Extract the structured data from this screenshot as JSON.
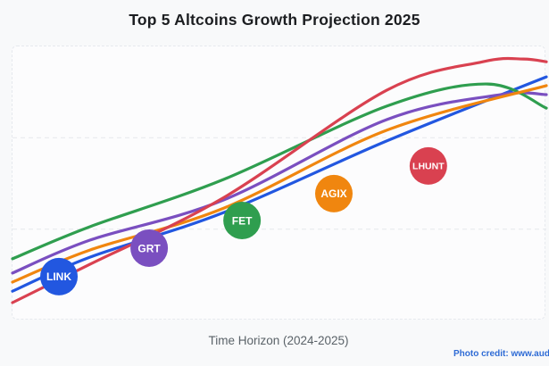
{
  "title": "Top 5 Altcoins Growth Projection 2025",
  "photo_credit": "Photo credit: www.aud",
  "theme": {
    "page_bg": "#f8f9fa",
    "panel_bg": "#fcfcfd",
    "panel_border": "#e6e9ee",
    "grid_color": "#e7eaee",
    "title_color": "#1c1e21",
    "axis_label_color": "#5a6268",
    "credit_color": "#2e6bd5",
    "bubble_text_color": "#ffffff"
  },
  "chart_data": {
    "type": "line",
    "title": "Top 5 Altcoins Growth Projection 2025",
    "xlabel": "Time Horizon (2024-2025)",
    "ylabel": "",
    "x_range": [
      "2024",
      "2025"
    ],
    "y_axis": "relative growth, unlabeled (0-1 of plot height)",
    "grid": "2 horizontal dashed gridlines at 1/3 and 2/3 height, dashed plot border",
    "legend": "labeled colored bubbles placed along the curves",
    "line_width": 3.2,
    "series": [
      {
        "name": "LINK",
        "color": "#2257e0",
        "x": [
          0.0,
          0.145,
          0.396,
          0.701,
          1.0
        ],
        "y": [
          0.107,
          0.231,
          0.394,
          0.655,
          0.889
        ],
        "bubble": {
          "label": "LINK",
          "x": 0.087,
          "y": 0.16,
          "r": 21
        }
      },
      {
        "name": "GRT",
        "color": "#7a4fc0",
        "x": [
          0.0,
          0.145,
          0.396,
          0.701,
          0.915,
          1.0
        ],
        "y": [
          0.173,
          0.293,
          0.44,
          0.733,
          0.824,
          0.824
        ],
        "bubble": {
          "label": "GRT",
          "x": 0.256,
          "y": 0.264,
          "r": 21
        }
      },
      {
        "name": "FET",
        "color": "#2f9e4f",
        "x": [
          0.0,
          0.145,
          0.396,
          0.701,
          0.89,
          1.0
        ],
        "y": [
          0.225,
          0.342,
          0.515,
          0.782,
          0.863,
          0.775
        ],
        "bubble": {
          "label": "FET",
          "x": 0.43,
          "y": 0.365,
          "r": 21
        }
      },
      {
        "name": "AGIX",
        "color": "#f0860f",
        "x": [
          0.0,
          0.145,
          0.396,
          0.701,
          1.0
        ],
        "y": [
          0.14,
          0.257,
          0.41,
          0.694,
          0.857
        ],
        "bubble": {
          "label": "AGIX",
          "x": 0.602,
          "y": 0.463,
          "r": 21
        }
      },
      {
        "name": "LHUNT",
        "color": "#d94150",
        "x": [
          0.0,
          0.145,
          0.396,
          0.701,
          0.881,
          0.957,
          1.0
        ],
        "y": [
          0.065,
          0.205,
          0.449,
          0.84,
          0.944,
          0.954,
          0.944
        ],
        "bubble": {
          "label": "LHUNT",
          "x": 0.779,
          "y": 0.564,
          "r": 21
        }
      }
    ]
  }
}
